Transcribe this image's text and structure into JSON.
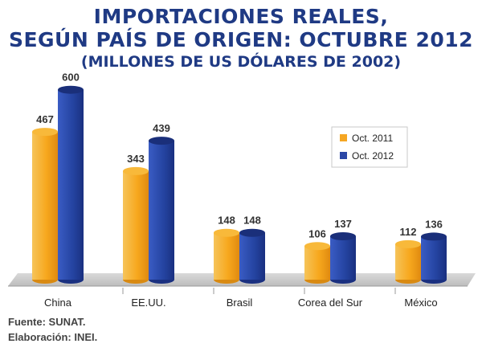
{
  "title_lines": [
    "IMPORTACIONES REALES,",
    "SEGÚN PAÍS DE ORIGEN: OCTUBRE 2012"
  ],
  "subtitle": "(MILLONES DE US DÓLARES DE 2002)",
  "footer": {
    "source": "Fuente: SUNAT.",
    "elaboration": "Elaboración: INEI."
  },
  "chart_data": {
    "type": "bar",
    "title": "IMPORTACIONES REALES, SEGÚN PAÍS DE ORIGEN: OCTUBRE 2012",
    "subtitle": "(MILLONES DE US DÓLARES DE 2002)",
    "categories": [
      "China",
      "EE.UU.",
      "Brasil",
      "Corea del Sur",
      "México"
    ],
    "series": [
      {
        "name": "Oct. 2011",
        "color": "#f5a623",
        "values": [
          467,
          343,
          148,
          106,
          112
        ]
      },
      {
        "name": "Oct. 2012",
        "color": "#2b47a6",
        "values": [
          600,
          439,
          148,
          137,
          136
        ]
      }
    ],
    "ylim": [
      0,
      650
    ],
    "legend_position": "top-right",
    "grid": false
  }
}
